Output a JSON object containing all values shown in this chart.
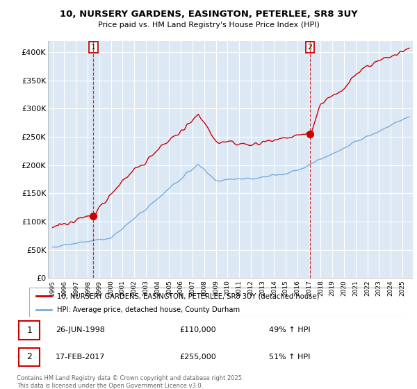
{
  "title_line1": "10, NURSERY GARDENS, EASINGTON, PETERLEE, SR8 3UY",
  "title_line2": "Price paid vs. HM Land Registry's House Price Index (HPI)",
  "ylim": [
    0,
    420000
  ],
  "yticks": [
    0,
    50000,
    100000,
    150000,
    200000,
    250000,
    300000,
    350000,
    400000
  ],
  "ytick_labels": [
    "£0",
    "£50K",
    "£100K",
    "£150K",
    "£200K",
    "£250K",
    "£300K",
    "£350K",
    "£400K"
  ],
  "line1_color": "#cc0000",
  "line2_color": "#7aabdb",
  "marker_color": "#cc0000",
  "chart_bg": "#dce9f5",
  "annotation1_date": "26-JUN-1998",
  "annotation1_price": "£110,000",
  "annotation1_hpi": "49% ↑ HPI",
  "annotation2_date": "17-FEB-2017",
  "annotation2_price": "£255,000",
  "annotation2_hpi": "51% ↑ HPI",
  "legend_label1": "10, NURSERY GARDENS, EASINGTON, PETERLEE, SR8 3UY (detached house)",
  "legend_label2": "HPI: Average price, detached house, County Durham",
  "footer": "Contains HM Land Registry data © Crown copyright and database right 2025.\nThis data is licensed under the Open Government Licence v3.0.",
  "background_color": "#ffffff",
  "grid_color": "#ffffff",
  "year_start": 1995,
  "year_end": 2025,
  "sale1_year": 1998.46,
  "sale1_price": 110000,
  "sale2_year": 2017.12,
  "sale2_price": 255000
}
